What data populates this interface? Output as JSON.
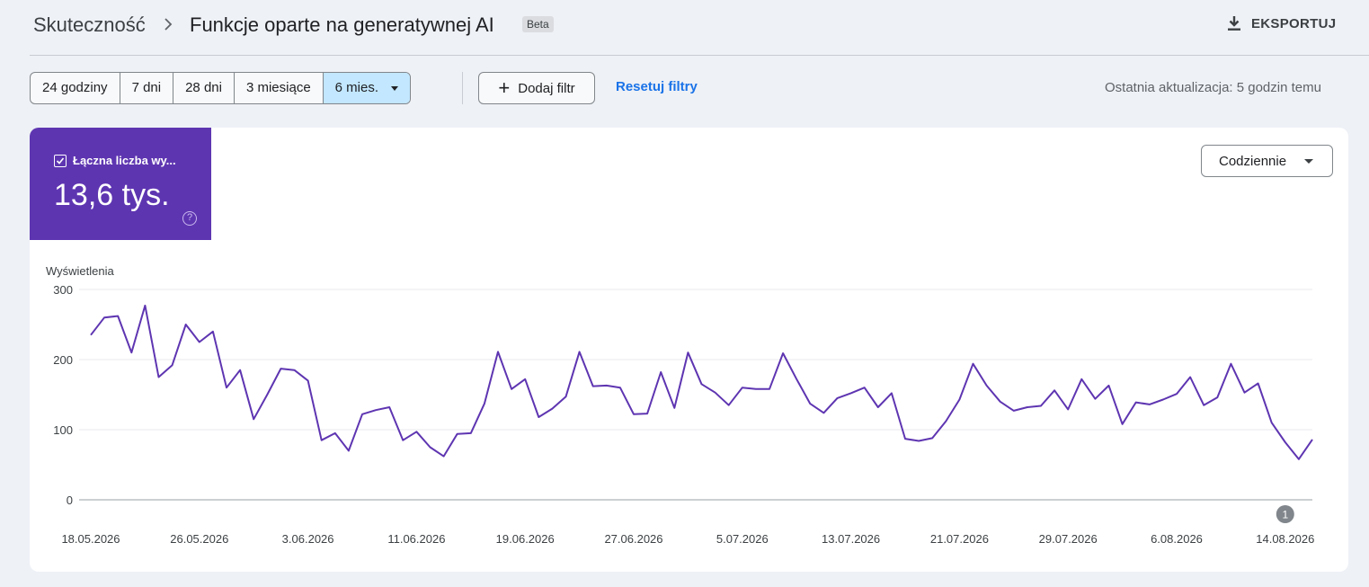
{
  "header": {
    "breadcrumb_root": "Skuteczność",
    "title": "Funkcje oparte na generatywnej AI",
    "badge": "Beta",
    "export_label": "EKSPORTUJ"
  },
  "filters": {
    "ranges": [
      "24 godziny",
      "7 dni",
      "28 dni",
      "3 miesiące",
      "6 mies."
    ],
    "active_range": "6 mies.",
    "add_filter_label": "Dodaj filtr",
    "reset_label": "Resetuj filtry",
    "last_update": "Ostatnia aktualizacja: 5 godzin temu"
  },
  "metric": {
    "label": "Łączna liczba wy...",
    "value": "13,6 tys.",
    "checked": true
  },
  "granularity": {
    "label": "Codziennie"
  },
  "colors": {
    "accent": "#5e35b1",
    "line": "#5e35b1",
    "link": "#1a73e8",
    "active_range_bg": "#c2e7ff"
  },
  "chart_data": {
    "type": "line",
    "ylabel": "Wyświetlenia",
    "ylim": [
      0,
      300
    ],
    "yticks": [
      0,
      100,
      200,
      300
    ],
    "grid": true,
    "x_tick_labels": [
      "18.05.2026",
      "26.05.2026",
      "3.06.2026",
      "11.06.2026",
      "19.06.2026",
      "27.06.2026",
      "5.07.2026",
      "13.07.2026",
      "21.07.2026",
      "29.07.2026",
      "6.08.2026",
      "14.08.2026"
    ],
    "x_start": "2026-05-18",
    "annotations": [
      {
        "date": "2026-08-14",
        "label": "1"
      }
    ],
    "series": [
      {
        "values": [
          235,
          260,
          262,
          210,
          277,
          175,
          192,
          250,
          225,
          240,
          160,
          185,
          115,
          150,
          187,
          185,
          170,
          85,
          95,
          70,
          122,
          128,
          132,
          85,
          97,
          75,
          62,
          94,
          95,
          137,
          211,
          158,
          172,
          118,
          130,
          147,
          211,
          162,
          163,
          160,
          122,
          123,
          182,
          131,
          210,
          165,
          153,
          135,
          160,
          158,
          158,
          209,
          172,
          137,
          124,
          145,
          152,
          160,
          132,
          152,
          87,
          84,
          88,
          112,
          143,
          194,
          163,
          140,
          127,
          132,
          134,
          156,
          129,
          172,
          144,
          163,
          108,
          139,
          136,
          143,
          151,
          175,
          135,
          146,
          194,
          153,
          166,
          110,
          82,
          58,
          86
        ]
      }
    ]
  }
}
